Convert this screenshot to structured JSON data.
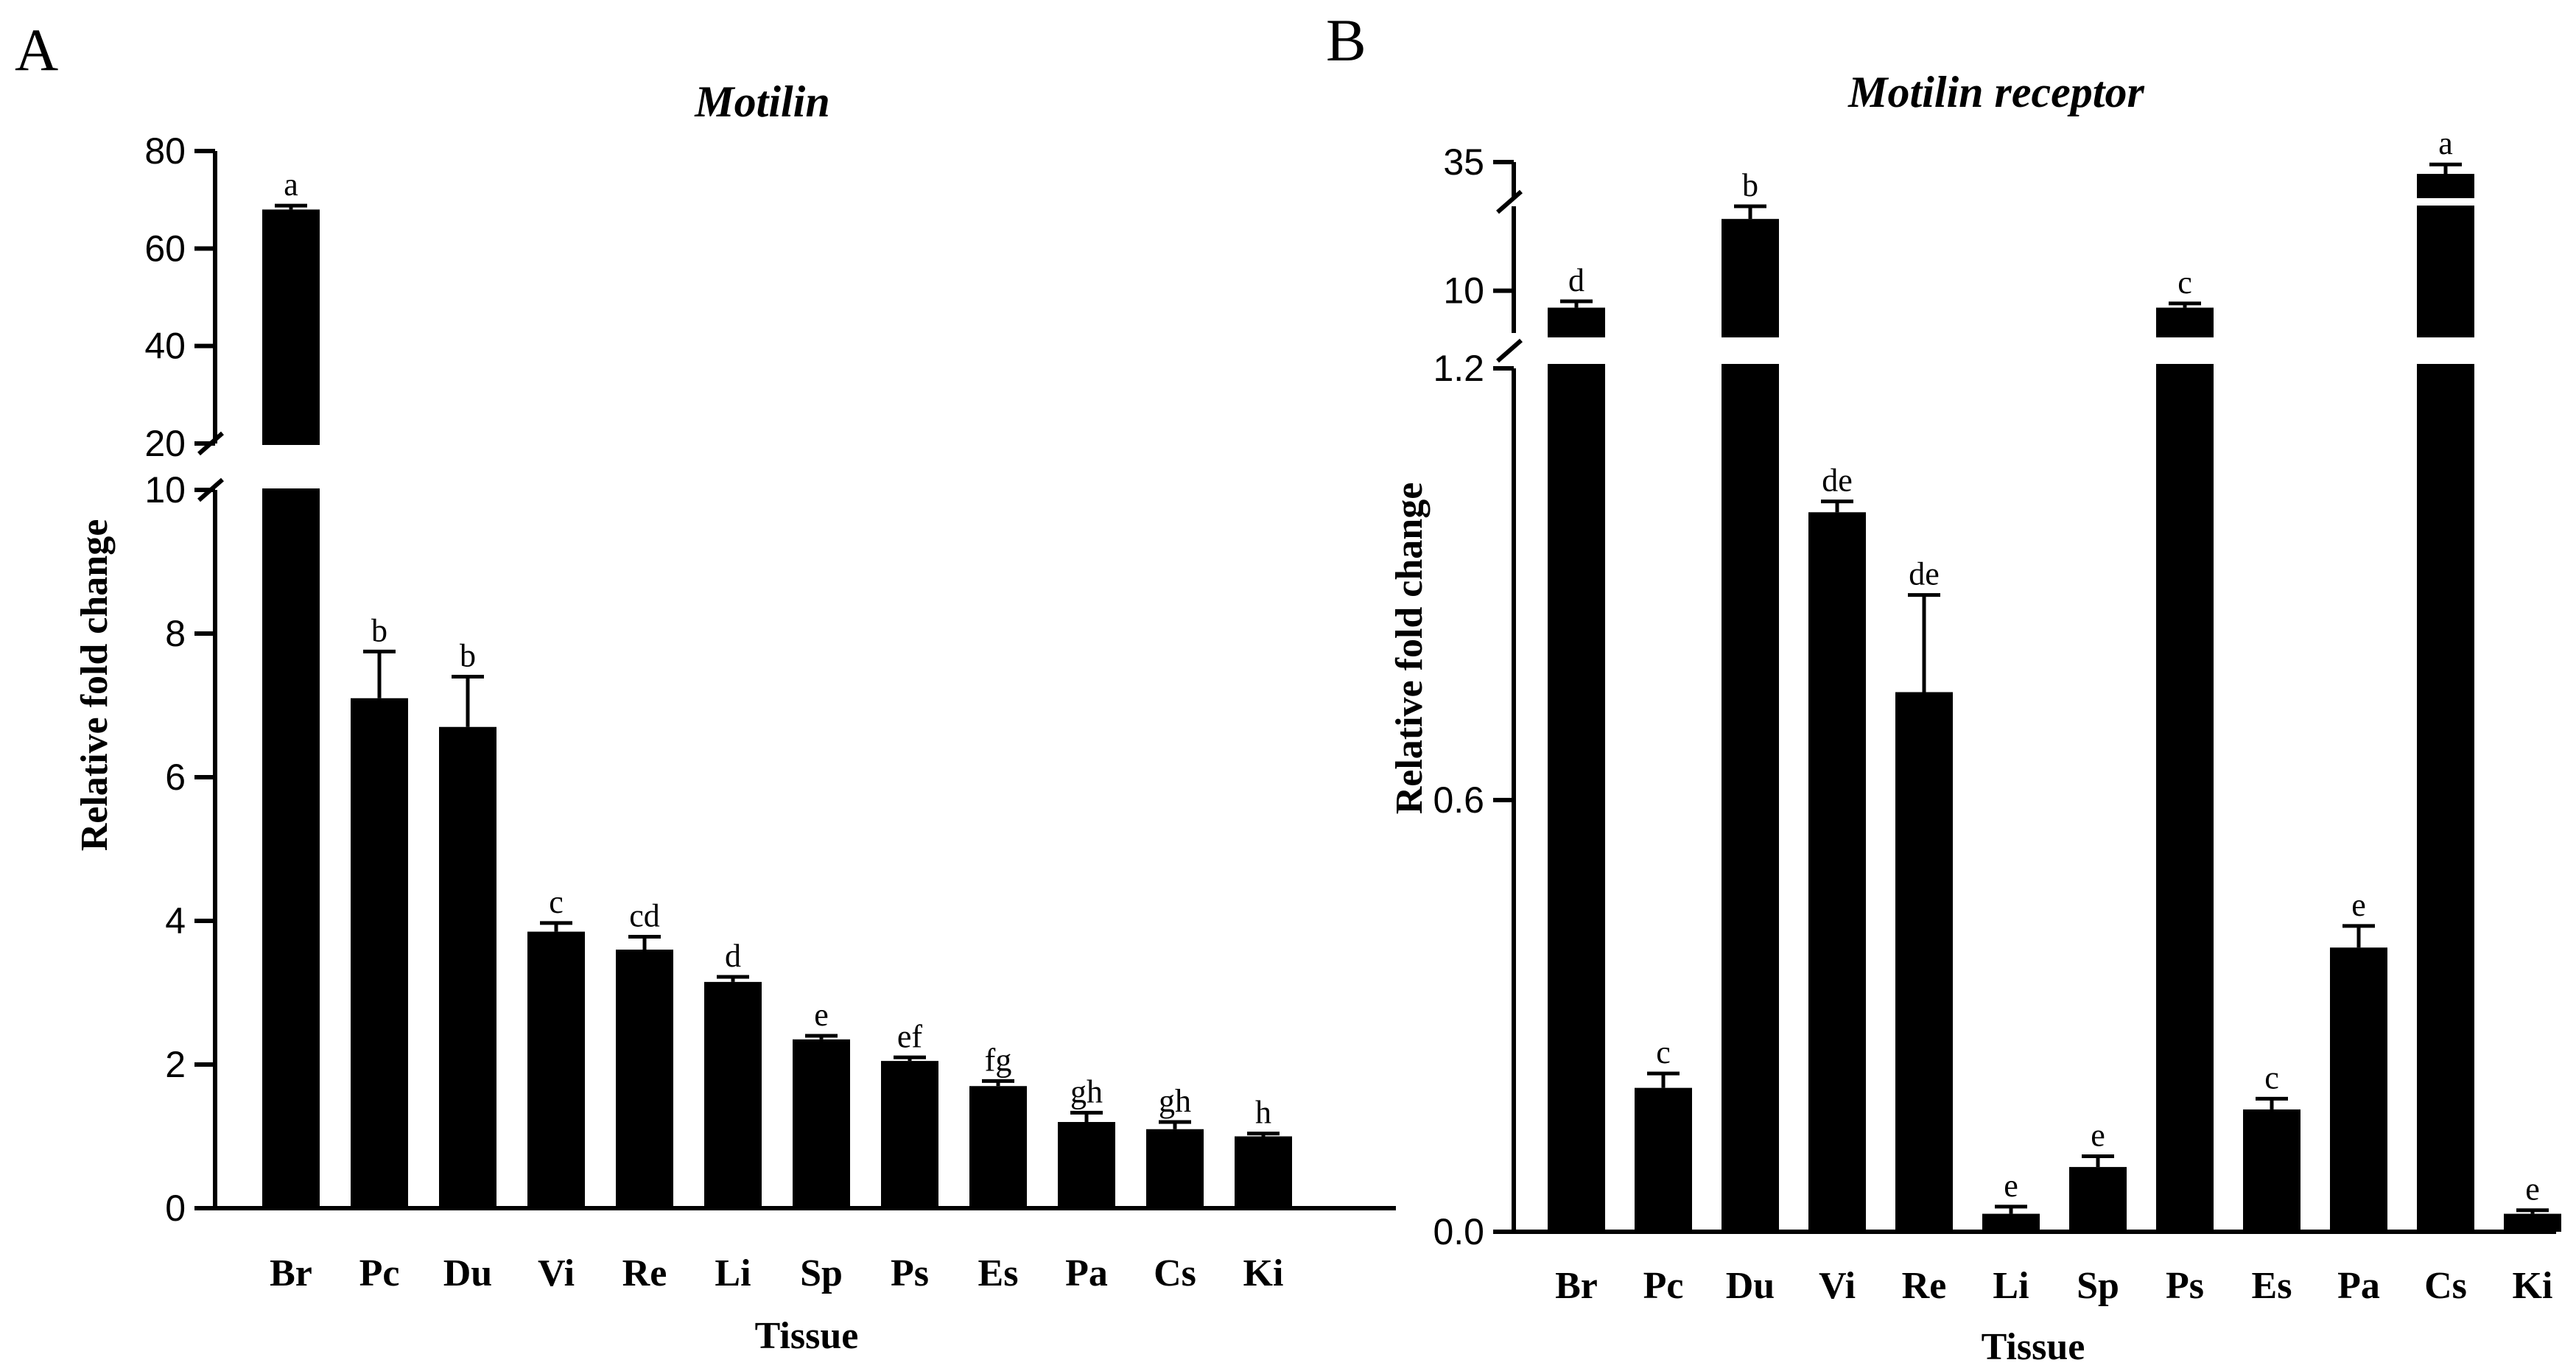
{
  "chart_data": [
    {
      "panel": "A",
      "type": "bar",
      "title": "Motilin",
      "xlabel": "Tissue",
      "ylabel": "Relative fold change",
      "y_axis_break": [
        10,
        20
      ],
      "ylim": [
        0,
        80
      ],
      "lower_ticks": [
        "0",
        "2",
        "4",
        "6",
        "8",
        "10"
      ],
      "upper_ticks": [
        "20",
        "40",
        "60",
        "80"
      ],
      "categories": [
        "Br",
        "Pc",
        "Du",
        "Vi",
        "Re",
        "Li",
        "Sp",
        "Ps",
        "Es",
        "Pa",
        "Cs",
        "Ki"
      ],
      "values": [
        68,
        7.1,
        6.7,
        3.85,
        3.6,
        3.15,
        2.35,
        2.05,
        1.7,
        1.2,
        1.1,
        1.0
      ],
      "errors": [
        0.8,
        0.65,
        0.7,
        0.12,
        0.18,
        0.07,
        0.05,
        0.05,
        0.07,
        0.13,
        0.1,
        0.04
      ],
      "labels": [
        "a",
        "b",
        "b",
        "c",
        "cd",
        "d",
        "e",
        "ef",
        "fg",
        "gh",
        "gh",
        "h"
      ]
    },
    {
      "panel": "B",
      "type": "bar",
      "title": "Motilin receptor",
      "xlabel": "Tissue",
      "ylabel": "Relative fold change",
      "y_axis_breaks": [
        [
          1.2,
          10
        ],
        [
          10,
          35
        ]
      ],
      "ylim": [
        0,
        35
      ],
      "lower_ticks": [
        "0.0",
        "0.6",
        "1.2"
      ],
      "mid_ticks": [
        "10"
      ],
      "upper_ticks": [
        "35"
      ],
      "categories": [
        "Br",
        "Pc",
        "Du",
        "Vi",
        "Re",
        "Li",
        "Sp",
        "Ps",
        "Es",
        "Pa",
        "Cs",
        "Ki"
      ],
      "values": [
        9.6,
        0.2,
        11.7,
        1.0,
        0.75,
        0.025,
        0.09,
        9.6,
        0.17,
        0.395,
        34.5,
        0.025
      ],
      "errors": [
        0.15,
        0.02,
        0.6,
        0.015,
        0.135,
        0.01,
        0.015,
        0.1,
        0.015,
        0.03,
        0.4,
        0.005
      ],
      "labels": [
        "d",
        "c",
        "b",
        "de",
        "de",
        "e",
        "e",
        "c",
        "c",
        "e",
        "a",
        "e"
      ]
    }
  ]
}
